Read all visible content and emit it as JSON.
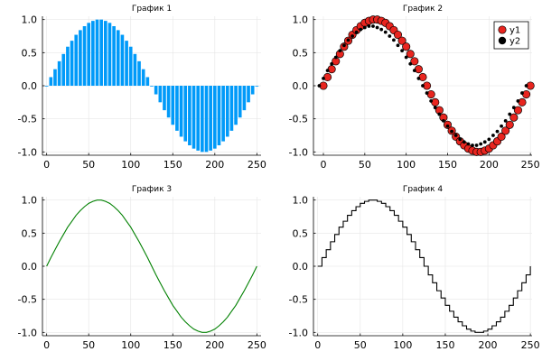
{
  "chart_data": [
    {
      "type": "bar",
      "title": "График 1",
      "color": "#009AF9",
      "xlim": [
        -5,
        255
      ],
      "ylim": [
        -1.05,
        1.05
      ],
      "xticks": [
        0,
        50,
        100,
        150,
        200,
        250
      ],
      "yticks": [
        -1.0,
        -0.5,
        0.0,
        0.5,
        1.0
      ],
      "ytick_labels": [
        "-1.0",
        "-0.5",
        "0.0",
        "0.5",
        "1.0"
      ],
      "grid": true,
      "x": [
        0,
        5,
        10,
        15,
        20,
        25,
        30,
        35,
        40,
        45,
        50,
        55,
        60,
        65,
        70,
        75,
        80,
        85,
        90,
        95,
        100,
        105,
        110,
        115,
        120,
        125,
        130,
        135,
        140,
        145,
        150,
        155,
        160,
        165,
        170,
        175,
        180,
        185,
        190,
        195,
        200,
        205,
        210,
        215,
        220,
        225,
        230,
        235,
        240,
        245,
        250
      ],
      "values": [
        0.0,
        0.13,
        0.25,
        0.37,
        0.48,
        0.59,
        0.68,
        0.77,
        0.84,
        0.9,
        0.95,
        0.98,
        1.0,
        1.0,
        0.98,
        0.95,
        0.9,
        0.84,
        0.77,
        0.68,
        0.59,
        0.48,
        0.37,
        0.25,
        0.13,
        0.0,
        -0.13,
        -0.25,
        -0.37,
        -0.48,
        -0.59,
        -0.68,
        -0.77,
        -0.84,
        -0.9,
        -0.95,
        -0.98,
        -1.0,
        -1.0,
        -0.98,
        -0.95,
        -0.9,
        -0.84,
        -0.77,
        -0.68,
        -0.59,
        -0.48,
        -0.37,
        -0.25,
        -0.13,
        0.0
      ]
    },
    {
      "type": "scatter",
      "title": "График 2",
      "xlim": [
        -12,
        252
      ],
      "ylim": [
        -1.05,
        1.05
      ],
      "xticks": [
        0,
        50,
        100,
        150,
        200,
        250
      ],
      "yticks": [
        -1.0,
        -0.5,
        0.0,
        0.5,
        1.0
      ],
      "ytick_labels": [
        "-1.0",
        "-0.5",
        "0.0",
        "0.5",
        "1.0"
      ],
      "grid": true,
      "legend": "top-right",
      "series": [
        {
          "name": "y1",
          "color": "#E8251F",
          "x": [
            0,
            5,
            10,
            15,
            20,
            25,
            30,
            35,
            40,
            45,
            50,
            55,
            60,
            65,
            70,
            75,
            80,
            85,
            90,
            95,
            100,
            105,
            110,
            115,
            120,
            125,
            130,
            135,
            140,
            145,
            150,
            155,
            160,
            165,
            170,
            175,
            180,
            185,
            190,
            195,
            200,
            205,
            210,
            215,
            220,
            225,
            230,
            235,
            240,
            245,
            250
          ],
          "values": [
            0.0,
            0.13,
            0.25,
            0.37,
            0.48,
            0.59,
            0.68,
            0.77,
            0.84,
            0.9,
            0.95,
            0.98,
            1.0,
            1.0,
            0.98,
            0.95,
            0.9,
            0.84,
            0.77,
            0.68,
            0.59,
            0.48,
            0.37,
            0.25,
            0.13,
            0.0,
            -0.13,
            -0.25,
            -0.37,
            -0.48,
            -0.59,
            -0.68,
            -0.77,
            -0.84,
            -0.9,
            -0.95,
            -0.98,
            -1.0,
            -1.0,
            -0.98,
            -0.95,
            -0.9,
            -0.84,
            -0.77,
            -0.68,
            -0.59,
            -0.48,
            -0.37,
            -0.25,
            -0.13,
            0.0
          ]
        },
        {
          "name": "y2",
          "color": "#000000",
          "x": [
            -5,
            0,
            5,
            10,
            15,
            20,
            25,
            30,
            35,
            40,
            45,
            50,
            55,
            60,
            65,
            70,
            75,
            80,
            85,
            90,
            95,
            100,
            105,
            110,
            115,
            120,
            125,
            130,
            135,
            140,
            145,
            150,
            155,
            160,
            165,
            170,
            175,
            180,
            185,
            190,
            195,
            200,
            205,
            210,
            215,
            220,
            225,
            230,
            235,
            240,
            245
          ],
          "values": [
            0.0,
            0.11,
            0.23,
            0.33,
            0.43,
            0.53,
            0.61,
            0.69,
            0.75,
            0.81,
            0.85,
            0.88,
            0.9,
            0.9,
            0.88,
            0.85,
            0.81,
            0.75,
            0.69,
            0.61,
            0.53,
            0.43,
            0.33,
            0.23,
            0.11,
            0.0,
            -0.11,
            -0.23,
            -0.33,
            -0.43,
            -0.53,
            -0.61,
            -0.69,
            -0.75,
            -0.81,
            -0.85,
            -0.88,
            -0.9,
            -0.9,
            -0.88,
            -0.85,
            -0.81,
            -0.75,
            -0.69,
            -0.61,
            -0.53,
            -0.43,
            -0.33,
            -0.23,
            -0.11,
            0.0
          ]
        }
      ]
    },
    {
      "type": "line",
      "title": "График 3",
      "color": "#008000",
      "xlim": [
        -5,
        255
      ],
      "ylim": [
        -1.05,
        1.05
      ],
      "xticks": [
        0,
        50,
        100,
        150,
        200,
        250
      ],
      "yticks": [
        -1.0,
        -0.5,
        0.0,
        0.5,
        1.0
      ],
      "ytick_labels": [
        "-1.0",
        "-0.5",
        "0.0",
        "0.5",
        "1.0"
      ],
      "grid": true,
      "x": [
        0,
        5,
        10,
        15,
        20,
        25,
        30,
        35,
        40,
        45,
        50,
        55,
        60,
        65,
        70,
        75,
        80,
        85,
        90,
        95,
        100,
        105,
        110,
        115,
        120,
        125,
        130,
        135,
        140,
        145,
        150,
        155,
        160,
        165,
        170,
        175,
        180,
        185,
        190,
        195,
        200,
        205,
        210,
        215,
        220,
        225,
        230,
        235,
        240,
        245,
        250
      ],
      "values": [
        0.0,
        0.13,
        0.25,
        0.37,
        0.48,
        0.59,
        0.68,
        0.77,
        0.84,
        0.9,
        0.95,
        0.98,
        1.0,
        1.0,
        0.98,
        0.95,
        0.9,
        0.84,
        0.77,
        0.68,
        0.59,
        0.48,
        0.37,
        0.25,
        0.13,
        0.0,
        -0.13,
        -0.25,
        -0.37,
        -0.48,
        -0.59,
        -0.68,
        -0.77,
        -0.84,
        -0.9,
        -0.95,
        -0.98,
        -1.0,
        -1.0,
        -0.98,
        -0.95,
        -0.9,
        -0.84,
        -0.77,
        -0.68,
        -0.59,
        -0.48,
        -0.37,
        -0.25,
        -0.13,
        0.0
      ]
    },
    {
      "type": "line",
      "title": "График 4",
      "color": "#000000",
      "step": true,
      "xlim": [
        -5,
        252
      ],
      "ylim": [
        -1.05,
        1.05
      ],
      "xticks": [
        0,
        50,
        100,
        150,
        200,
        250
      ],
      "yticks": [
        -1.0,
        -0.5,
        0.0,
        0.5,
        1.0
      ],
      "ytick_labels": [
        "-1.0",
        "-0.5",
        "0.0",
        "0.5",
        "1.0"
      ],
      "grid": true,
      "x": [
        0,
        5,
        10,
        15,
        20,
        25,
        30,
        35,
        40,
        45,
        50,
        55,
        60,
        65,
        70,
        75,
        80,
        85,
        90,
        95,
        100,
        105,
        110,
        115,
        120,
        125,
        130,
        135,
        140,
        145,
        150,
        155,
        160,
        165,
        170,
        175,
        180,
        185,
        190,
        195,
        200,
        205,
        210,
        215,
        220,
        225,
        230,
        235,
        240,
        245,
        250
      ],
      "values": [
        0.0,
        0.13,
        0.25,
        0.37,
        0.48,
        0.59,
        0.68,
        0.77,
        0.84,
        0.9,
        0.95,
        0.98,
        1.0,
        1.0,
        0.98,
        0.95,
        0.9,
        0.84,
        0.77,
        0.68,
        0.59,
        0.48,
        0.37,
        0.25,
        0.13,
        0.0,
        -0.13,
        -0.25,
        -0.37,
        -0.48,
        -0.59,
        -0.68,
        -0.77,
        -0.84,
        -0.9,
        -0.95,
        -0.98,
        -1.0,
        -1.0,
        -0.98,
        -0.95,
        -0.9,
        -0.84,
        -0.77,
        -0.68,
        -0.59,
        -0.48,
        -0.37,
        -0.25,
        -0.13,
        0.0
      ]
    }
  ]
}
